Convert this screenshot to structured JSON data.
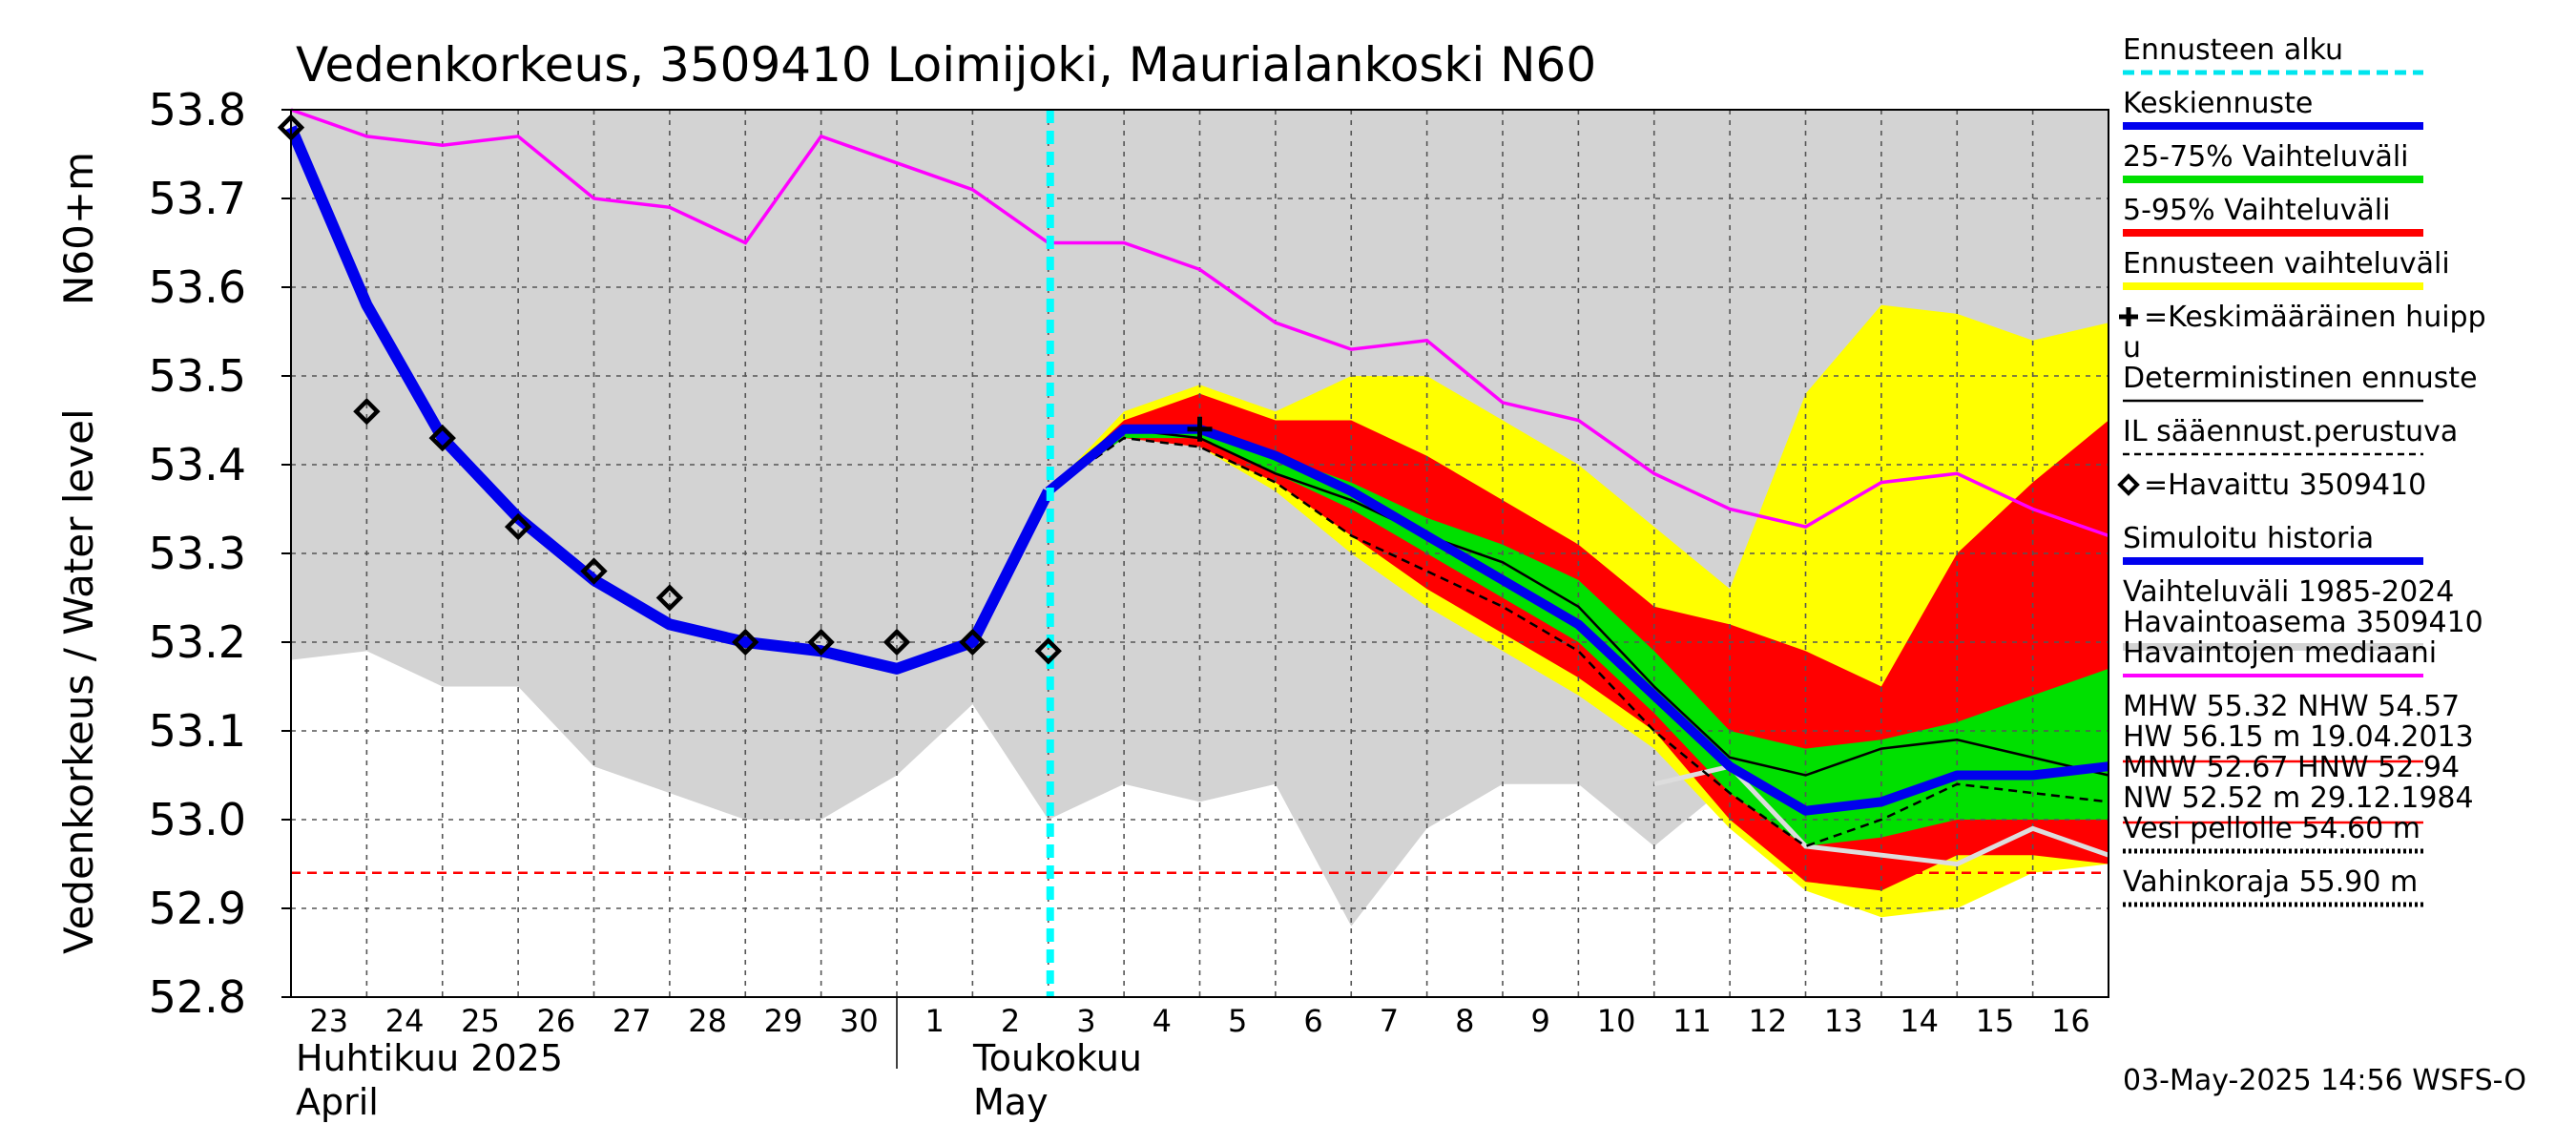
{
  "chart_data": {
    "type": "line",
    "title": "Vedenkorkeus, 3509410 Loimijoki, Maurialankoski N60",
    "ylabel_fi": "Vedenkorkeus / Water level",
    "ylabel_unit": "N60+m",
    "ylim": [
      52.8,
      53.8
    ],
    "yticks": [
      "52.8",
      "52.9",
      "53.0",
      "53.1",
      "53.2",
      "53.3",
      "53.4",
      "53.5",
      "53.6",
      "53.7",
      "53.8"
    ],
    "x_day_labels": [
      "23",
      "24",
      "25",
      "26",
      "27",
      "28",
      "29",
      "30",
      "1",
      "2",
      "3",
      "4",
      "5",
      "6",
      "7",
      "8",
      "9",
      "10",
      "11",
      "12",
      "13",
      "14",
      "15",
      "16"
    ],
    "month_labels": [
      {
        "fi": "Huhtikuu  2025",
        "en": "April"
      },
      {
        "fi": "Toukokuu",
        "en": "May"
      }
    ],
    "grid": true,
    "legend_position": "right",
    "forecast_start_day": 10,
    "hist_range_upper": [
      [
        0,
        53.8
      ],
      [
        24,
        53.8
      ]
    ],
    "hist_range_lower": [
      [
        0,
        53.18
      ],
      [
        1,
        53.19
      ],
      [
        2,
        53.15
      ],
      [
        3,
        53.15
      ],
      [
        4,
        53.06
      ],
      [
        5,
        53.03
      ],
      [
        6,
        53.0
      ],
      [
        7,
        53.0
      ],
      [
        8,
        53.05
      ],
      [
        9,
        53.13
      ],
      [
        10,
        53.0
      ],
      [
        11,
        53.04
      ],
      [
        12,
        53.02
      ],
      [
        13,
        53.04
      ],
      [
        14,
        52.88
      ],
      [
        15,
        52.99
      ],
      [
        16,
        53.04
      ],
      [
        17,
        53.04
      ],
      [
        18,
        52.97
      ],
      [
        19,
        53.04
      ],
      [
        20,
        53.0
      ],
      [
        21,
        53.0
      ],
      [
        22,
        53.0
      ],
      [
        23,
        53.0
      ],
      [
        24,
        53.0
      ]
    ],
    "ensemble_upper": [
      [
        10,
        53.37
      ],
      [
        11,
        53.46
      ],
      [
        12,
        53.49
      ],
      [
        13,
        53.46
      ],
      [
        14,
        53.5
      ],
      [
        15,
        53.5
      ],
      [
        16,
        53.45
      ],
      [
        17,
        53.4
      ],
      [
        18,
        53.33
      ],
      [
        19,
        53.26
      ],
      [
        20,
        53.48
      ],
      [
        21,
        53.58
      ],
      [
        22,
        53.57
      ],
      [
        23,
        53.54
      ],
      [
        24,
        53.56
      ]
    ],
    "ensemble_lower": [
      [
        10,
        53.37
      ],
      [
        11,
        53.43
      ],
      [
        12,
        53.42
      ],
      [
        13,
        53.37
      ],
      [
        14,
        53.3
      ],
      [
        15,
        53.24
      ],
      [
        16,
        53.19
      ],
      [
        17,
        53.14
      ],
      [
        18,
        53.08
      ],
      [
        19,
        52.99
      ],
      [
        20,
        52.92
      ],
      [
        21,
        52.89
      ],
      [
        22,
        52.9
      ],
      [
        23,
        52.94
      ],
      [
        24,
        52.95
      ]
    ],
    "p5_95_upper": [
      [
        10,
        53.37
      ],
      [
        11,
        53.45
      ],
      [
        12,
        53.48
      ],
      [
        13,
        53.45
      ],
      [
        14,
        53.45
      ],
      [
        15,
        53.41
      ],
      [
        16,
        53.36
      ],
      [
        17,
        53.31
      ],
      [
        18,
        53.24
      ],
      [
        19,
        53.22
      ],
      [
        20,
        53.19
      ],
      [
        21,
        53.15
      ],
      [
        22,
        53.3
      ],
      [
        23,
        53.38
      ],
      [
        24,
        53.45
      ]
    ],
    "p5_95_lower": [
      [
        10,
        53.37
      ],
      [
        11,
        53.43
      ],
      [
        12,
        53.42
      ],
      [
        13,
        53.38
      ],
      [
        14,
        53.32
      ],
      [
        15,
        53.26
      ],
      [
        16,
        53.21
      ],
      [
        17,
        53.16
      ],
      [
        18,
        53.1
      ],
      [
        19,
        53.0
      ],
      [
        20,
        52.93
      ],
      [
        21,
        52.92
      ],
      [
        22,
        52.96
      ],
      [
        23,
        52.96
      ],
      [
        24,
        52.95
      ]
    ],
    "p25_75_upper": [
      [
        10,
        53.37
      ],
      [
        11,
        53.44
      ],
      [
        12,
        53.44
      ],
      [
        13,
        53.41
      ],
      [
        14,
        53.38
      ],
      [
        15,
        53.34
      ],
      [
        16,
        53.31
      ],
      [
        17,
        53.27
      ],
      [
        18,
        53.19
      ],
      [
        19,
        53.1
      ],
      [
        20,
        53.08
      ],
      [
        21,
        53.09
      ],
      [
        22,
        53.11
      ],
      [
        23,
        53.14
      ],
      [
        24,
        53.17
      ]
    ],
    "p25_75_lower": [
      [
        10,
        53.37
      ],
      [
        11,
        53.43
      ],
      [
        12,
        53.43
      ],
      [
        13,
        53.39
      ],
      [
        14,
        53.35
      ],
      [
        15,
        53.3
      ],
      [
        16,
        53.25
      ],
      [
        17,
        53.2
      ],
      [
        18,
        53.12
      ],
      [
        19,
        53.03
      ],
      [
        20,
        52.97
      ],
      [
        21,
        52.98
      ],
      [
        22,
        53.0
      ],
      [
        23,
        53.0
      ],
      [
        24,
        53.0
      ]
    ],
    "median_forecast": [
      [
        10,
        53.37
      ],
      [
        11,
        53.44
      ],
      [
        12,
        53.44
      ],
      [
        13,
        53.41
      ],
      [
        14,
        53.37
      ],
      [
        15,
        53.32
      ],
      [
        16,
        53.27
      ],
      [
        17,
        53.22
      ],
      [
        18,
        53.14
      ],
      [
        19,
        53.06
      ],
      [
        20,
        53.01
      ],
      [
        21,
        53.02
      ],
      [
        22,
        53.05
      ],
      [
        23,
        53.05
      ],
      [
        24,
        53.06
      ]
    ],
    "simulated_history": [
      [
        0,
        53.78
      ],
      [
        1,
        53.58
      ],
      [
        2,
        53.43
      ],
      [
        3,
        53.34
      ],
      [
        4,
        53.27
      ],
      [
        5,
        53.22
      ],
      [
        6,
        53.2
      ],
      [
        7,
        53.19
      ],
      [
        8,
        53.17
      ],
      [
        9,
        53.2
      ],
      [
        10,
        53.37
      ]
    ],
    "deterministic": [
      [
        10,
        53.37
      ],
      [
        11,
        53.44
      ],
      [
        12,
        53.43
      ],
      [
        13,
        53.39
      ],
      [
        14,
        53.36
      ],
      [
        15,
        53.32
      ],
      [
        16,
        53.29
      ],
      [
        17,
        53.24
      ],
      [
        18,
        53.15
      ],
      [
        19,
        53.07
      ],
      [
        20,
        53.05
      ],
      [
        21,
        53.08
      ],
      [
        22,
        53.09
      ],
      [
        23,
        53.07
      ],
      [
        24,
        53.05
      ]
    ],
    "il_forecast": [
      [
        10,
        53.37
      ],
      [
        11,
        53.43
      ],
      [
        12,
        53.42
      ],
      [
        13,
        53.38
      ],
      [
        14,
        53.32
      ],
      [
        15,
        53.28
      ],
      [
        16,
        53.24
      ],
      [
        17,
        53.19
      ],
      [
        18,
        53.1
      ],
      [
        19,
        53.03
      ],
      [
        20,
        52.97
      ],
      [
        21,
        53.0
      ],
      [
        22,
        53.04
      ],
      [
        23,
        53.03
      ],
      [
        24,
        53.02
      ]
    ],
    "observation_median": [
      [
        0,
        53.8
      ],
      [
        1,
        53.77
      ],
      [
        2,
        53.76
      ],
      [
        3,
        53.77
      ],
      [
        4,
        53.7
      ],
      [
        5,
        53.69
      ],
      [
        6,
        53.65
      ],
      [
        7,
        53.77
      ],
      [
        8,
        53.74
      ],
      [
        9,
        53.71
      ],
      [
        10,
        53.65
      ],
      [
        11,
        53.65
      ],
      [
        12,
        53.62
      ],
      [
        13,
        53.56
      ],
      [
        14,
        53.53
      ],
      [
        15,
        53.54
      ],
      [
        16,
        53.47
      ],
      [
        17,
        53.45
      ],
      [
        18,
        53.39
      ],
      [
        19,
        53.35
      ],
      [
        20,
        53.33
      ],
      [
        21,
        53.38
      ],
      [
        22,
        53.39
      ],
      [
        23,
        53.35
      ],
      [
        24,
        53.32
      ]
    ],
    "white_line": [
      [
        18,
        53.04
      ],
      [
        19,
        53.06
      ],
      [
        20,
        52.97
      ],
      [
        21,
        52.96
      ],
      [
        22,
        52.95
      ],
      [
        23,
        52.99
      ],
      [
        24,
        52.96
      ]
    ],
    "observed": [
      [
        0,
        53.78
      ],
      [
        1,
        53.46
      ],
      [
        2,
        53.43
      ],
      [
        3,
        53.33
      ],
      [
        4,
        53.28
      ],
      [
        5,
        53.25
      ],
      [
        6,
        53.2
      ],
      [
        7,
        53.2
      ],
      [
        8,
        53.2
      ],
      [
        9,
        53.2
      ],
      [
        10,
        53.19
      ]
    ],
    "mean_peak": [
      [
        12,
        53.44
      ]
    ],
    "nw_level": 52.94,
    "colors": {
      "hist_range": "#d3d3d3",
      "ensemble": "#ffff00",
      "p5_95": "#ff0000",
      "p25_75": "#00e000",
      "median": "#0000ee",
      "obs_median": "#ff00ff",
      "forecast_start": "#00ffff",
      "nw": "#ff0000"
    }
  },
  "legend": [
    {
      "label": "Ennusteen alku",
      "color": "#00e5ee",
      "style": "dotted-thick"
    },
    {
      "label": "Keskiennuste",
      "color": "#0000ee",
      "style": "thick"
    },
    {
      "label": "25-75% Vaihteluväli",
      "color": "#00e000",
      "style": "thick"
    },
    {
      "label": "5-95% Vaihteluväli",
      "color": "#ff0000",
      "style": "thick"
    },
    {
      "label": "Ennusteen vaihteluväli",
      "color": "#ffff00",
      "style": "thick"
    },
    {
      "label": "=Keskimääräinen huipp",
      "label2": "u",
      "color": "#000000",
      "style": "none",
      "marker": "plus"
    },
    {
      "label": "Deterministinen ennuste",
      "color": "#000000",
      "style": "thin"
    },
    {
      "label": "IL sääennust.perustuva",
      "color": "#000000",
      "style": "dashed"
    },
    {
      "label": "=Havaittu 3509410",
      "color": "#000000",
      "style": "none",
      "marker": "diamond"
    },
    {
      "label": "Simuloitu historia",
      "color": "#0000ee",
      "style": "thick"
    },
    {
      "label": "Vaihteluväli 1985-2024",
      "label2": " Havaintoasema 3509410",
      "color": "#d3d3d3",
      "style": "thick"
    },
    {
      "label": "Havaintojen mediaani",
      "color": "#ff00ff",
      "style": "medium"
    },
    {
      "label": "MHW  55.32 NHW  54.57",
      "label2": "HW  56.15 m 19.04.2013",
      "color": "#ff0000",
      "style": "thin"
    },
    {
      "label": "MNW  52.67 HNW  52.94",
      "label2": "NW  52.52 m 29.12.1984",
      "color": "#ff0000",
      "style": "thin"
    },
    {
      "label": "Vesi pellolle 54.60 m",
      "color": "#000000",
      "style": "dotted-thick"
    },
    {
      "label": "Vahinkoraja 55.90 m",
      "color": "#000000",
      "style": "dotted-thick"
    }
  ],
  "footer": "03-May-2025 14:56 WSFS-O"
}
